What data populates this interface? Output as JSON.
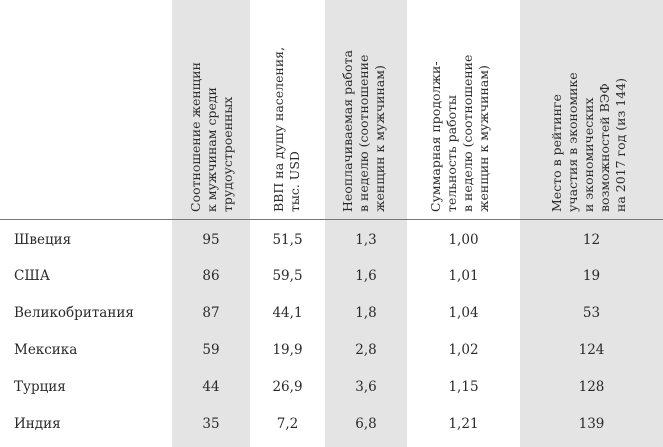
{
  "headers": [
    {
      "lines": [
        "Соотношение женщин",
        "к мужчинам среди",
        "трудоустроенных"
      ]
    },
    {
      "lines": [
        "ВВП на душу населения,",
        "тыс. USD"
      ]
    },
    {
      "lines": [
        "Неоплачиваемая работа",
        "в неделю (соотношение",
        "женщин к мужчинам)"
      ]
    },
    {
      "lines": [
        "Суммарная продолжи-",
        "тельность работы",
        "в неделю (соотношение",
        "женщин к мужчинам)"
      ]
    },
    {
      "lines": [
        "Место в рейтинге",
        "участия в экономике",
        "и экономических",
        "возможностей ВЭФ",
        "на 2017 год (из 144)"
      ]
    }
  ],
  "rows": [
    {
      "country": "Швеция",
      "values": [
        "95",
        "51,5",
        "1,3",
        "1,00",
        "12"
      ]
    },
    {
      "country": "США",
      "values": [
        "86",
        "59,5",
        "1,6",
        "1,01",
        "19"
      ]
    },
    {
      "country": "Великобритания",
      "values": [
        "87",
        "44,1",
        "1,8",
        "1,04",
        "53"
      ]
    },
    {
      "country": "Мексика",
      "values": [
        "59",
        "19,9",
        "2,8",
        "1,02",
        "124"
      ]
    },
    {
      "country": "Турция",
      "values": [
        "44",
        "26,9",
        "3,6",
        "1,15",
        "128"
      ]
    },
    {
      "country": "Индия",
      "values": [
        "35",
        "7,2",
        "6,8",
        "1,21",
        "139"
      ]
    }
  ]
}
